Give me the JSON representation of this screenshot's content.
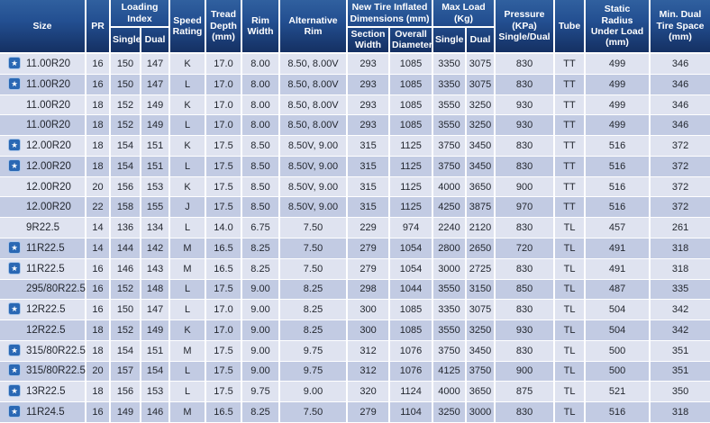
{
  "colors": {
    "header_gradient_top": "#30609f",
    "header_gradient_bottom": "#142f61",
    "row_light": "#dfe3f0",
    "row_dark": "#c2cbe3",
    "grid_line": "#ffffff",
    "star_box_blue": "#2a68b4",
    "header_text": "#ffffff",
    "body_text": "#23272f"
  },
  "table": {
    "star_icon_glyph": "★",
    "header": {
      "size": "Size",
      "pr": "PR",
      "loading_index": "Loading Index",
      "single": "Single",
      "dual": "Dual",
      "speed_rating": "Speed Rating",
      "tread_depth": "Tread Depth (mm)",
      "rim_width": "Rim Width",
      "alternative_rim": "Alternative Rim",
      "new_tire_dims": "New Tire Inflated Dimensions (mm)",
      "section_width": "Section Width",
      "overall_diameter": "Overall Diameter",
      "max_load": "Max Load (Kg)",
      "max_single": "Single",
      "max_dual": "Dual",
      "pressure": "Pressure (KPa) Single/Dual",
      "tube": "Tube",
      "static_radius": "Static Radius Under Load (mm)",
      "min_dual_space": "Min. Dual Tire Space (mm)"
    },
    "rows": [
      {
        "star": true,
        "size": "11.00R20",
        "values": [
          "16",
          "150",
          "147",
          "K",
          "17.0",
          "8.00",
          "8.50, 8.00V",
          "293",
          "1085",
          "3350",
          "3075",
          "830",
          "TT",
          "499",
          "346"
        ]
      },
      {
        "star": true,
        "size": "11.00R20",
        "values": [
          "16",
          "150",
          "147",
          "L",
          "17.0",
          "8.00",
          "8.50, 8.00V",
          "293",
          "1085",
          "3350",
          "3075",
          "830",
          "TT",
          "499",
          "346"
        ]
      },
      {
        "star": false,
        "size": "11.00R20",
        "values": [
          "18",
          "152",
          "149",
          "K",
          "17.0",
          "8.00",
          "8.50, 8.00V",
          "293",
          "1085",
          "3550",
          "3250",
          "930",
          "TT",
          "499",
          "346"
        ]
      },
      {
        "star": false,
        "size": "11.00R20",
        "values": [
          "18",
          "152",
          "149",
          "L",
          "17.0",
          "8.00",
          "8.50, 8.00V",
          "293",
          "1085",
          "3550",
          "3250",
          "930",
          "TT",
          "499",
          "346"
        ]
      },
      {
        "star": true,
        "size": "12.00R20",
        "values": [
          "18",
          "154",
          "151",
          "K",
          "17.5",
          "8.50",
          "8.50V, 9.00",
          "315",
          "1125",
          "3750",
          "3450",
          "830",
          "TT",
          "516",
          "372"
        ]
      },
      {
        "star": true,
        "size": "12.00R20",
        "values": [
          "18",
          "154",
          "151",
          "L",
          "17.5",
          "8.50",
          "8.50V, 9.00",
          "315",
          "1125",
          "3750",
          "3450",
          "830",
          "TT",
          "516",
          "372"
        ]
      },
      {
        "star": false,
        "size": "12.00R20",
        "values": [
          "20",
          "156",
          "153",
          "K",
          "17.5",
          "8.50",
          "8.50V, 9.00",
          "315",
          "1125",
          "4000",
          "3650",
          "900",
          "TT",
          "516",
          "372"
        ]
      },
      {
        "star": false,
        "size": "12.00R20",
        "values": [
          "22",
          "158",
          "155",
          "J",
          "17.5",
          "8.50",
          "8.50V, 9.00",
          "315",
          "1125",
          "4250",
          "3875",
          "970",
          "TT",
          "516",
          "372"
        ]
      },
      {
        "star": false,
        "size": "9R22.5",
        "values": [
          "14",
          "136",
          "134",
          "L",
          "14.0",
          "6.75",
          "7.50",
          "229",
          "974",
          "2240",
          "2120",
          "830",
          "TL",
          "457",
          "261"
        ]
      },
      {
        "star": true,
        "size": "11R22.5",
        "values": [
          "14",
          "144",
          "142",
          "M",
          "16.5",
          "8.25",
          "7.50",
          "279",
          "1054",
          "2800",
          "2650",
          "720",
          "TL",
          "491",
          "318"
        ]
      },
      {
        "star": true,
        "size": "11R22.5",
        "values": [
          "16",
          "146",
          "143",
          "M",
          "16.5",
          "8.25",
          "7.50",
          "279",
          "1054",
          "3000",
          "2725",
          "830",
          "TL",
          "491",
          "318"
        ]
      },
      {
        "star": false,
        "size": "295/80R22.5",
        "values": [
          "16",
          "152",
          "148",
          "L",
          "17.5",
          "9.00",
          "8.25",
          "298",
          "1044",
          "3550",
          "3150",
          "850",
          "TL",
          "487",
          "335"
        ]
      },
      {
        "star": true,
        "size": "12R22.5",
        "values": [
          "16",
          "150",
          "147",
          "L",
          "17.0",
          "9.00",
          "8.25",
          "300",
          "1085",
          "3350",
          "3075",
          "830",
          "TL",
          "504",
          "342"
        ]
      },
      {
        "star": false,
        "size": "12R22.5",
        "values": [
          "18",
          "152",
          "149",
          "K",
          "17.0",
          "9.00",
          "8.25",
          "300",
          "1085",
          "3550",
          "3250",
          "930",
          "TL",
          "504",
          "342"
        ]
      },
      {
        "star": true,
        "size": "315/80R22.5",
        "values": [
          "18",
          "154",
          "151",
          "M",
          "17.5",
          "9.00",
          "9.75",
          "312",
          "1076",
          "3750",
          "3450",
          "830",
          "TL",
          "500",
          "351"
        ]
      },
      {
        "star": true,
        "size": "315/80R22.5",
        "values": [
          "20",
          "157",
          "154",
          "L",
          "17.5",
          "9.00",
          "9.75",
          "312",
          "1076",
          "4125",
          "3750",
          "900",
          "TL",
          "500",
          "351"
        ]
      },
      {
        "star": true,
        "size": "13R22.5",
        "values": [
          "18",
          "156",
          "153",
          "L",
          "17.5",
          "9.75",
          "9.00",
          "320",
          "1124",
          "4000",
          "3650",
          "875",
          "TL",
          "521",
          "350"
        ]
      },
      {
        "star": true,
        "size": "11R24.5",
        "values": [
          "16",
          "149",
          "146",
          "M",
          "16.5",
          "8.25",
          "7.50",
          "279",
          "1104",
          "3250",
          "3000",
          "830",
          "TL",
          "516",
          "318"
        ]
      }
    ]
  }
}
